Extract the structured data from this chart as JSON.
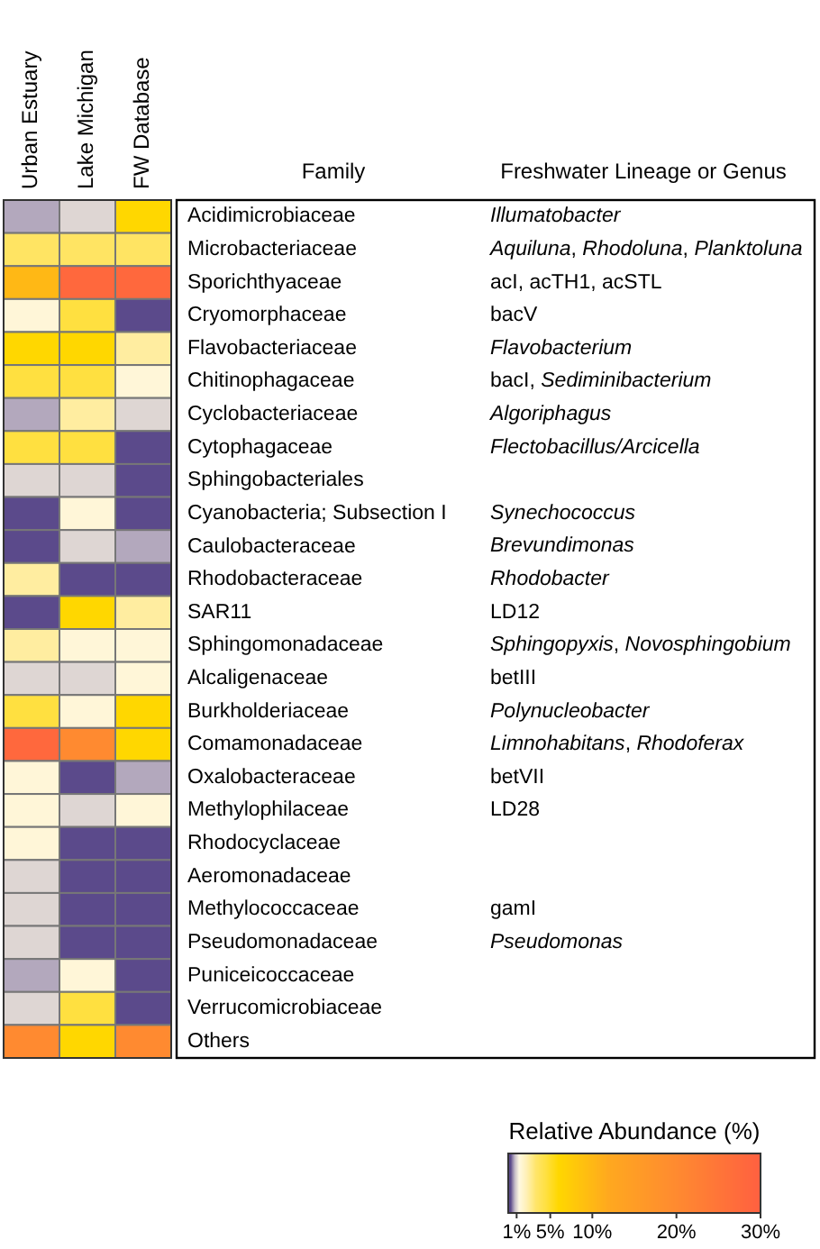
{
  "chart_data": {
    "type": "heatmap",
    "xlabel": "Family",
    "ylabel": "Freshwater Lineage or Genus",
    "clabel": "Relative Abundance (%)",
    "categories": [
      "Urban Estuary",
      "Lake Michigan",
      "FW Database"
    ],
    "y_categories": [
      "Acidimicrobiaceae",
      "Microbacteriaceae",
      "Sporichthyaceae",
      "Cryomorphaceae",
      "Flavobacteriaceae",
      "Chitinophagaceae",
      "Cyclobacteriaceae",
      "Cytophagaceae",
      "Sphingobacteriales",
      "Cyanobacteria; Subsection I",
      "Caulobacteraceae",
      "Rhodobacteraceae",
      "SAR11",
      "Sphingomonadaceae",
      "Alcaligenaceae",
      "Burkholderiaceae",
      "Comamonadaceae",
      "Oxalobacteraceae",
      "Methylophilaceae",
      "Rhodocyclaceae",
      "Aeromonadaceae",
      "Methylococcaceae",
      "Pseudomonadaceae",
      "Puniceicoccaceae",
      "Verrucomicrobiaceae",
      "Others"
    ],
    "y2_categories": [
      "Illumatobacter",
      "Aquiluna, Rhodoluna, Planktoluna",
      "acI, acTH1, acSTL",
      "bacV",
      "Flavobacterium",
      "bacI, Sediminibacterium",
      "Algoriphagus",
      "Flectobacillus/Arcicella",
      null,
      "Synechococcus",
      "Brevundimonas",
      "Rhodobacter",
      "LD12",
      "Sphingopyxis, Novosphingobium",
      "betIII",
      "Polynucleobacter",
      "Limnohabitans, Rhodoferax",
      "betVII",
      "LD28",
      null,
      null,
      "gamI",
      "Pseudomonas",
      null,
      null,
      null
    ],
    "cells": [
      [
        0.7,
        1.0,
        6
      ],
      [
        3.5,
        3.5,
        3.5
      ],
      [
        10,
        28,
        28
      ],
      [
        1.5,
        4.5,
        0.1
      ],
      [
        6,
        6,
        2.5
      ],
      [
        4.5,
        4.5,
        1.5
      ],
      [
        0.7,
        2.5,
        1.0
      ],
      [
        4.5,
        4.5,
        0.1
      ],
      [
        1.0,
        1.0,
        0.1
      ],
      [
        0.1,
        1.5,
        0.1
      ],
      [
        0.1,
        1.0,
        0.7
      ],
      [
        2.5,
        0.1,
        0.1
      ],
      [
        0.1,
        6,
        2.5
      ],
      [
        2.5,
        1.5,
        1.5
      ],
      [
        1.0,
        1.0,
        1.5
      ],
      [
        4.5,
        1.5,
        6
      ],
      [
        28,
        20,
        6
      ],
      [
        1.5,
        0.1,
        0.7
      ],
      [
        1.5,
        1.0,
        1.5
      ],
      [
        1.5,
        0.1,
        0.1
      ],
      [
        1.0,
        0.1,
        0.1
      ],
      [
        1.0,
        0.1,
        0.1
      ],
      [
        1.0,
        0.1,
        0.1
      ],
      [
        0.7,
        1.5,
        0.1
      ],
      [
        1.0,
        4.5,
        0.1
      ],
      [
        20,
        6,
        20
      ]
    ],
    "clim": [
      0,
      30
    ],
    "cticks": [
      {
        "value": 1,
        "label": "1%"
      },
      {
        "value": 5,
        "label": "5%"
      },
      {
        "value": 10,
        "label": "10%"
      },
      {
        "value": 20,
        "label": "20%"
      },
      {
        "value": 30,
        "label": "30%"
      }
    ]
  }
}
